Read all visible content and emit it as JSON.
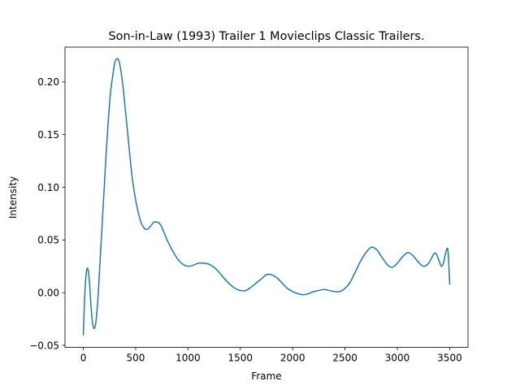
{
  "chart_data": {
    "type": "line",
    "title": "Son-in-Law (1993) Trailer 1  Movieclips Classic Trailers.",
    "xlabel": "Frame",
    "ylabel": "Intensity",
    "xlim": [
      -175,
      3675
    ],
    "ylim": [
      -0.052,
      0.233
    ],
    "xticks": [
      0,
      500,
      1000,
      1500,
      2000,
      2500,
      3000,
      3500
    ],
    "xtick_labels": [
      "0",
      "500",
      "1000",
      "1500",
      "2000",
      "2500",
      "3000",
      "3500"
    ],
    "yticks": [
      -0.05,
      0.0,
      0.05,
      0.1,
      0.15,
      0.2
    ],
    "ytick_labels": [
      "−0.05",
      "0.00",
      "0.05",
      "0.10",
      "0.15",
      "0.20"
    ],
    "grid": false,
    "line_color": "#1f77b4",
    "series": [
      {
        "x": [
          0,
          15,
          30,
          45,
          60,
          75,
          90,
          105,
          120,
          140,
          160,
          180,
          200,
          220,
          240,
          260,
          280,
          300,
          320,
          340,
          360,
          380,
          400,
          420,
          440,
          460,
          480,
          500,
          525,
          550,
          575,
          600,
          625,
          650,
          675,
          700,
          725,
          750,
          775,
          800,
          825,
          850,
          875,
          900,
          950,
          1000,
          1050,
          1100,
          1150,
          1200,
          1250,
          1300,
          1350,
          1400,
          1450,
          1500,
          1550,
          1600,
          1650,
          1700,
          1750,
          1800,
          1850,
          1900,
          1950,
          2000,
          2050,
          2100,
          2150,
          2200,
          2250,
          2300,
          2350,
          2400,
          2450,
          2500,
          2550,
          2600,
          2650,
          2700,
          2750,
          2800,
          2850,
          2900,
          2950,
          3000,
          3050,
          3100,
          3150,
          3200,
          3250,
          3300,
          3350,
          3375,
          3400,
          3420,
          3440,
          3460,
          3480,
          3490,
          3500
        ],
        "y": [
          -0.04,
          0.0,
          0.02,
          0.022,
          0.008,
          -0.015,
          -0.03,
          -0.034,
          -0.028,
          -0.005,
          0.03,
          0.065,
          0.1,
          0.135,
          0.165,
          0.19,
          0.205,
          0.218,
          0.222,
          0.22,
          0.21,
          0.195,
          0.175,
          0.155,
          0.135,
          0.115,
          0.1,
          0.088,
          0.076,
          0.067,
          0.062,
          0.06,
          0.061,
          0.064,
          0.067,
          0.067,
          0.066,
          0.062,
          0.056,
          0.05,
          0.045,
          0.04,
          0.036,
          0.032,
          0.027,
          0.025,
          0.026,
          0.028,
          0.028,
          0.027,
          0.024,
          0.019,
          0.013,
          0.008,
          0.004,
          0.002,
          0.002,
          0.005,
          0.009,
          0.013,
          0.017,
          0.017,
          0.014,
          0.009,
          0.004,
          0.001,
          -0.001,
          -0.002,
          -0.001,
          0.001,
          0.002,
          0.003,
          0.002,
          0.001,
          0.001,
          0.004,
          0.01,
          0.02,
          0.03,
          0.038,
          0.043,
          0.041,
          0.034,
          0.027,
          0.024,
          0.028,
          0.034,
          0.038,
          0.035,
          0.029,
          0.025,
          0.028,
          0.037,
          0.036,
          0.03,
          0.025,
          0.028,
          0.037,
          0.042,
          0.03,
          0.008
        ]
      }
    ]
  }
}
